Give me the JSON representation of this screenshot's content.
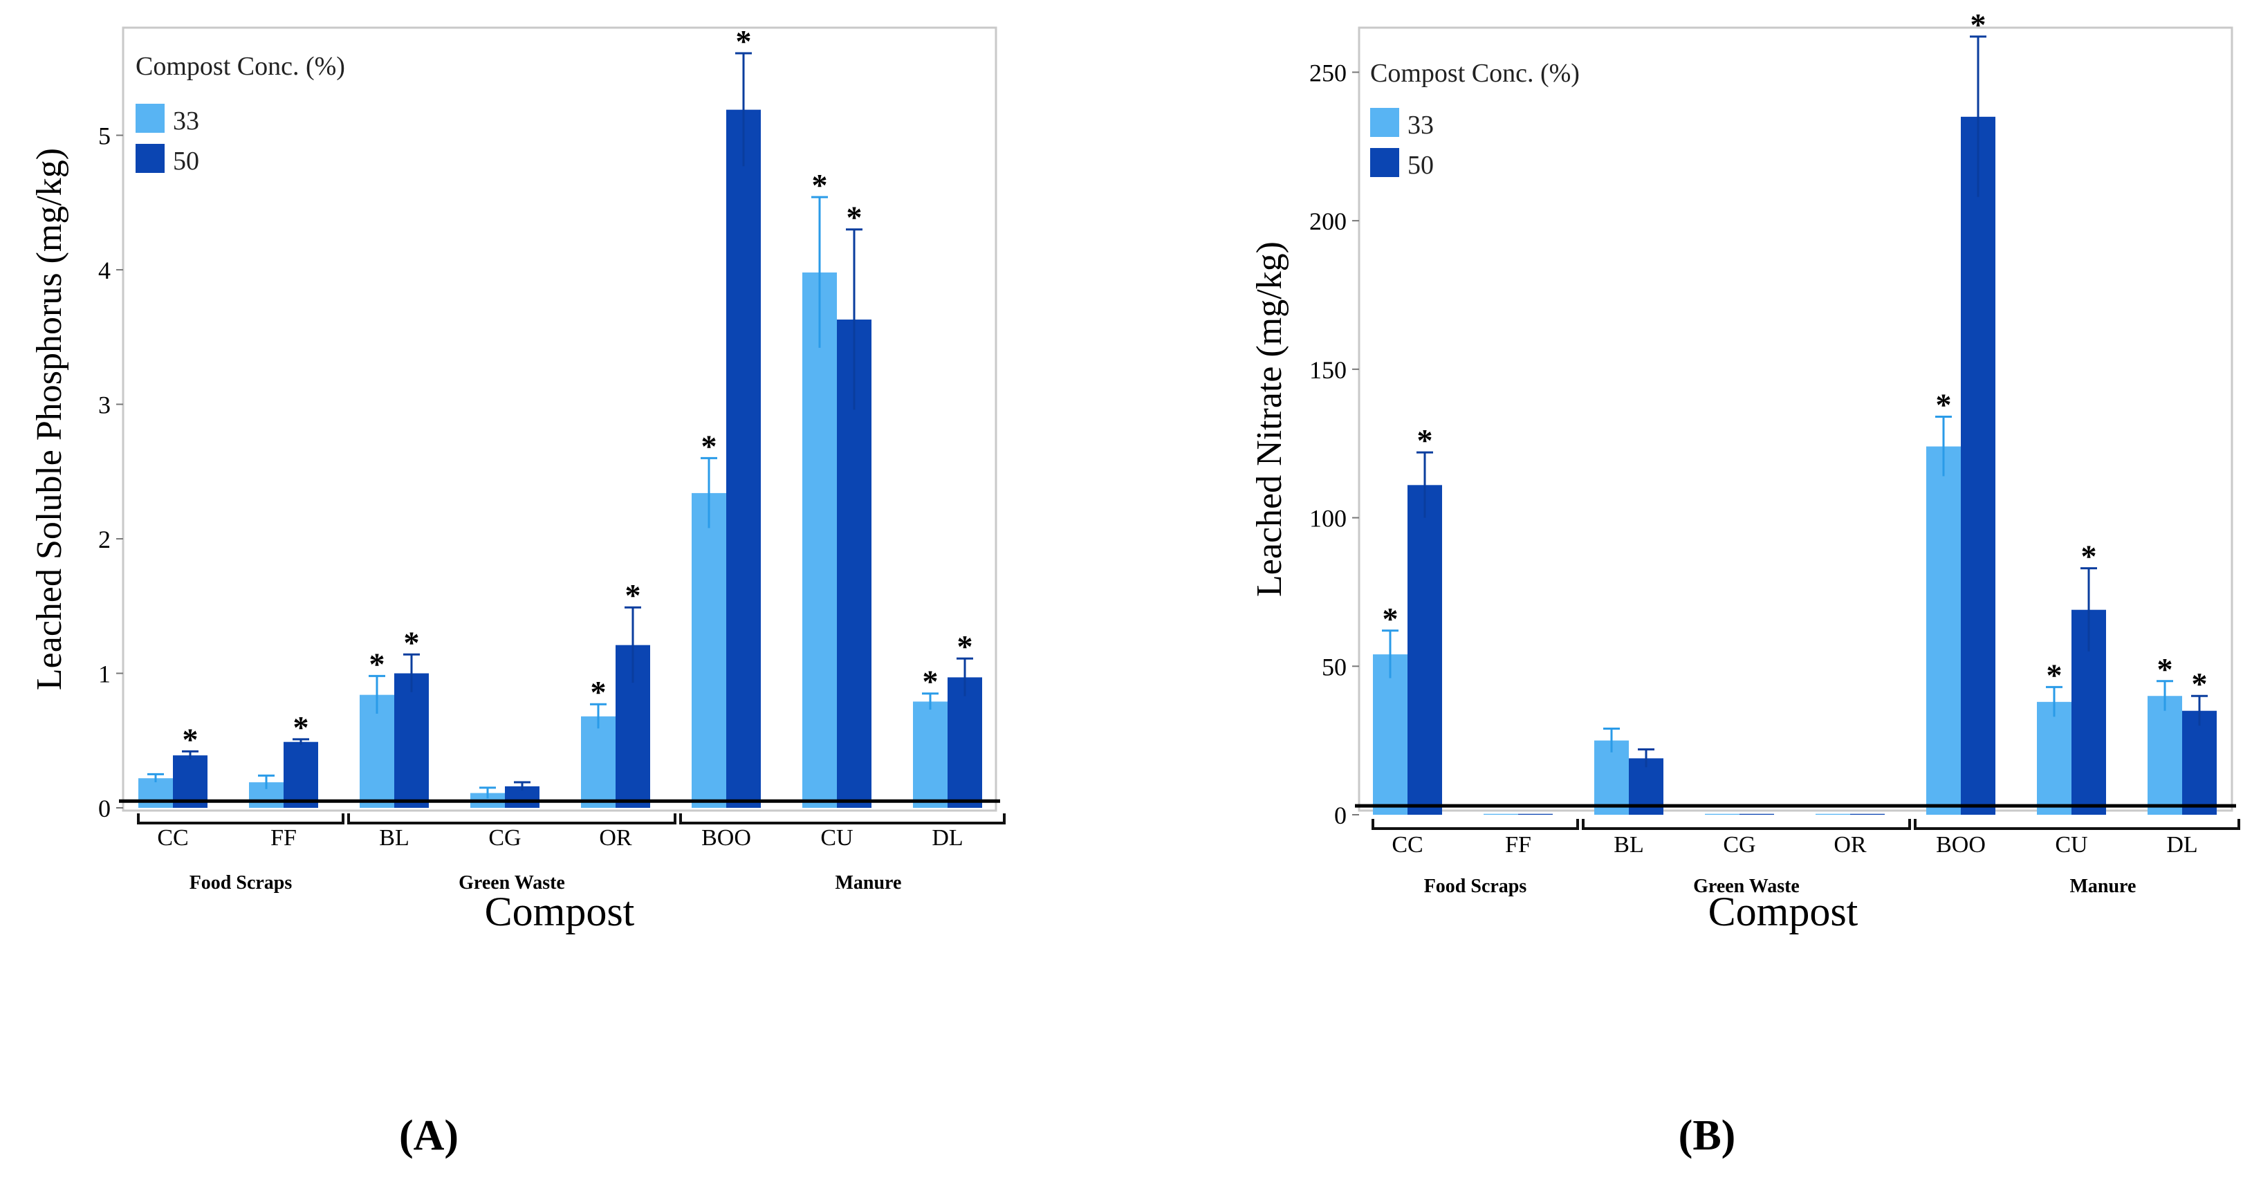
{
  "panels": [
    {
      "label": "(A)",
      "chart_data": {
        "type": "bar",
        "categories": [
          "CC",
          "FF",
          "BL",
          "CG",
          "OR",
          "BOO",
          "CU",
          "DL"
        ],
        "groups": [
          {
            "label": "Food Scraps",
            "categories": [
              "CC",
              "FF"
            ]
          },
          {
            "label": "Green Waste",
            "categories": [
              "BL",
              "CG",
              "OR"
            ]
          },
          {
            "label": "Manure",
            "categories": [
              "BOO",
              "CU",
              "DL"
            ]
          }
        ],
        "series": [
          {
            "name": "33",
            "color": "#58b4f3",
            "values": [
              0.22,
              0.19,
              0.84,
              0.11,
              0.68,
              2.34,
              3.98,
              0.79
            ],
            "errors": [
              0.03,
              0.05,
              0.14,
              0.04,
              0.09,
              0.26,
              0.56,
              0.06
            ],
            "significant": [
              false,
              false,
              true,
              false,
              true,
              true,
              true,
              true
            ]
          },
          {
            "name": "50",
            "color": "#0b45b2",
            "values": [
              0.39,
              0.49,
              1.0,
              0.16,
              1.21,
              5.19,
              3.63,
              0.97
            ],
            "errors": [
              0.03,
              0.02,
              0.14,
              0.03,
              0.28,
              0.42,
              0.67,
              0.14
            ],
            "significant": [
              true,
              true,
              true,
              false,
              true,
              true,
              true,
              true
            ]
          }
        ],
        "legend_title": "Compost Conc. (%)",
        "ylabel": "Leached Soluble Phosphorus (mg/kg)",
        "xlabel": "Compost",
        "yticks": [
          0,
          1,
          2,
          3,
          4,
          5
        ],
        "ylim": [
          0,
          5.8
        ],
        "baseline": 0.05,
        "significance_marker": "*"
      }
    },
    {
      "label": "(B)",
      "chart_data": {
        "type": "bar",
        "categories": [
          "CC",
          "FF",
          "BL",
          "CG",
          "OR",
          "BOO",
          "CU",
          "DL"
        ],
        "groups": [
          {
            "label": "Food Scraps",
            "categories": [
              "CC",
              "FF"
            ]
          },
          {
            "label": "Green Waste",
            "categories": [
              "BL",
              "CG",
              "OR"
            ]
          },
          {
            "label": "Manure",
            "categories": [
              "BOO",
              "CU",
              "DL"
            ]
          }
        ],
        "series": [
          {
            "name": "33",
            "color": "#58b4f3",
            "values": [
              54,
              0.3,
              25,
              0.3,
              0.3,
              124,
              38,
              40
            ],
            "errors": [
              8,
              0,
              4,
              0,
              0,
              10,
              5,
              5
            ],
            "significant": [
              true,
              false,
              false,
              false,
              false,
              true,
              true,
              true
            ]
          },
          {
            "name": "50",
            "color": "#0b45b2",
            "values": [
              111,
              0.3,
              19,
              0.3,
              0.3,
              235,
              69,
              35
            ],
            "errors": [
              11,
              0,
              3,
              0,
              0,
              27,
              14,
              5
            ],
            "significant": [
              true,
              false,
              false,
              false,
              false,
              true,
              true,
              true
            ]
          }
        ],
        "legend_title": "Compost Conc. (%)",
        "ylabel": "Leached Nitrate (mg/kg)",
        "xlabel": "Compost",
        "yticks": [
          0,
          50,
          100,
          150,
          200,
          250
        ],
        "ylim": [
          0,
          265
        ],
        "baseline": 3,
        "significance_marker": "*"
      }
    }
  ]
}
